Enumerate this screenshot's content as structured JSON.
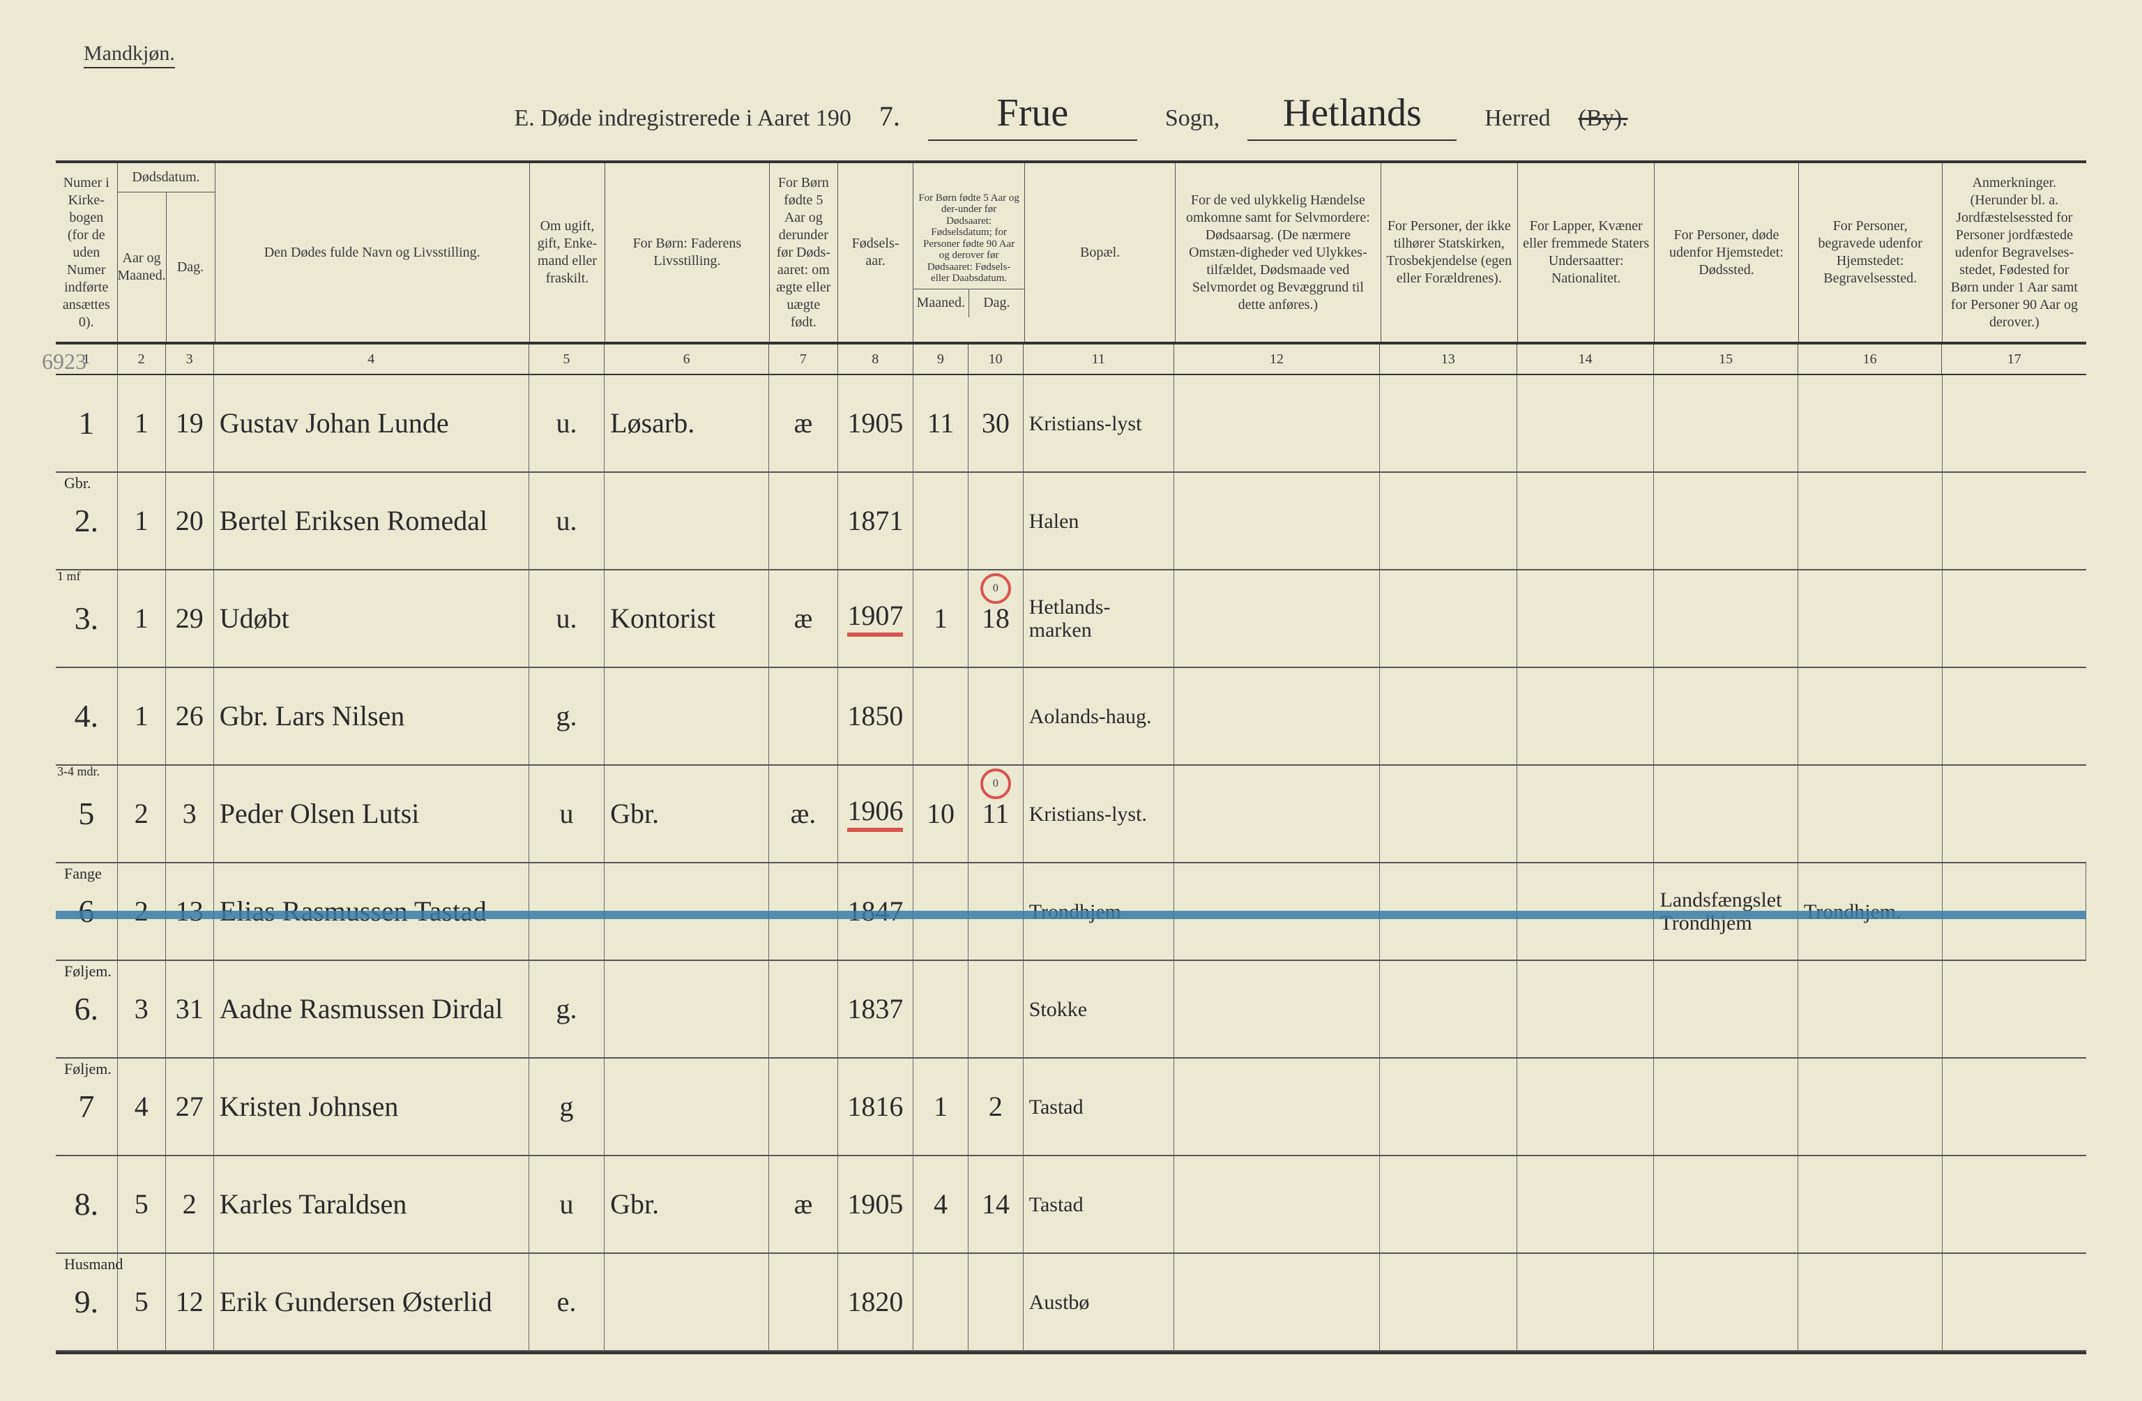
{
  "page": {
    "gender_label": "Mandkjøn.",
    "title_prefix": "E.   Døde indregistrerede i Aaret 190",
    "year_suffix": "7.",
    "sogn_value": "Frue",
    "sogn_label": "Sogn,",
    "herred_value": "Hetlands",
    "herred_label": "Herred",
    "by_struck": "(By)."
  },
  "headers": {
    "c1": "Numer i Kirke-bogen (for de uden Numer indførte ansættes 0).",
    "c2_3_top": "Dødsdatum.",
    "c2": "Aar og Maaned.",
    "c3": "Dag.",
    "c4": "Den Dødes fulde Navn og Livsstilling.",
    "c5": "Om ugift, gift, Enke-mand eller fraskilt.",
    "c6": "For Børn: Faderens Livsstilling.",
    "c7": "For Børn fødte 5 Aar og derunder før Døds-aaret: om ægte eller uægte født.",
    "c8": "Fødsels-aar.",
    "c9_10_top": "For Børn fødte 5 Aar og der-under før Dødsaaret: Fødselsdatum; for Personer fødte 90 Aar og derover før Dødsaaret: Fødsels- eller Daabsdatum.",
    "c9": "Maaned.",
    "c10": "Dag.",
    "c11": "Bopæl.",
    "c12": "For de ved ulykkelig Hændelse omkomne samt for Selvmordere: Dødsaarsag. (De nærmere Omstæn-digheder ved Ulykkes-tilfældet, Dødsmaade ved Selvmordet og Bevæggrund til dette anføres.)",
    "c13": "For Personer, der ikke tilhører Statskirken, Trosbekjendelse (egen eller Forældrenes).",
    "c14": "For Lapper, Kvæner eller fremmede Staters Undersaatter: Nationalitet.",
    "c15": "For Personer, døde udenfor Hjemstedet: Dødssted.",
    "c16": "For Personer, begravede udenfor Hjemstedet: Begravelsessted.",
    "c17": "Anmerkninger. (Herunder bl. a. Jordfæstelsessted for Personer jordfæstede udenfor Begravelses-stedet, Fødested for Børn under 1 Aar samt for Personer 90 Aar og derover.)"
  },
  "col_nums": {
    "c1": "1",
    "c2": "2",
    "c3": "3",
    "c4": "4",
    "c5": "5",
    "c6": "6",
    "c7": "7",
    "c8": "8",
    "c9": "9",
    "c10": "10",
    "c11": "11",
    "c12": "12",
    "c13": "13",
    "c14": "14",
    "c15": "15",
    "c16": "16",
    "c17": "17"
  },
  "margin_note": "6923",
  "rows": [
    {
      "num": "1",
      "maaned": "1",
      "dag": "19",
      "name": "Gustav Johan Lunde",
      "name_over": "",
      "civil": "u.",
      "fader": "Løsarb.",
      "legit": "æ",
      "faar": "1905",
      "fmnd": "11",
      "fdag": "30",
      "bopal": "Kristians-lyst",
      "c15": "",
      "c16": "",
      "red_year": false,
      "red_day": false
    },
    {
      "num": "2.",
      "maaned": "1",
      "dag": "20",
      "name": "Bertel Eriksen Romedal",
      "name_over": "Gbr.",
      "civil": "u.",
      "fader": "",
      "legit": "",
      "faar": "1871",
      "fmnd": "",
      "fdag": "",
      "bopal": "Halen",
      "c15": "",
      "c16": "",
      "red_year": false,
      "red_day": false
    },
    {
      "num": "3.",
      "maaned": "1",
      "dag": "29",
      "name": "Udøbt",
      "name_over": "",
      "civil": "u.",
      "fader": "Kontorist",
      "legit": "æ",
      "faar": "1907",
      "fmnd": "1",
      "fdag": "18",
      "fmnd_over": "1 mf",
      "fmnd_circle": "0",
      "bopal": "Hetlands-marken",
      "c15": "",
      "c16": "",
      "red_year": true,
      "red_day": false
    },
    {
      "num": "4.",
      "maaned": "1",
      "dag": "26",
      "name": "Gbr. Lars Nilsen",
      "name_over": "",
      "civil": "g.",
      "fader": "",
      "legit": "",
      "faar": "1850",
      "fmnd": "",
      "fdag": "",
      "bopal": "Aolands-haug.",
      "c15": "",
      "c16": "",
      "red_year": false,
      "red_day": false
    },
    {
      "num": "5",
      "maaned": "2",
      "dag": "3",
      "name": "Peder Olsen Lutsi",
      "name_over": "",
      "civil": "u",
      "fader": "Gbr.",
      "legit": "æ.",
      "faar": "1906",
      "fmnd": "10",
      "fdag": "11",
      "fmnd_over": "3-4 mdr.",
      "fmnd_circle": "0",
      "bopal": "Kristians-lyst.",
      "c15": "",
      "c16": "",
      "red_year": true,
      "red_day": false
    },
    {
      "num": "6",
      "maaned": "2",
      "dag": "13",
      "name": "Elias Rasmussen Tastad",
      "name_over": "Fange",
      "civil": "",
      "fader": "",
      "legit": "",
      "faar": "1847",
      "fmnd": "",
      "fdag": "",
      "bopal": "Trondhjem",
      "c15": "Landsfængslet Trondhjem",
      "c16": "Trondhjem.",
      "struck": true,
      "red_year": false,
      "red_day": false
    },
    {
      "num": "6.",
      "maaned": "3",
      "dag": "31",
      "name": "Aadne Rasmussen Dirdal",
      "name_over": "Føljem.",
      "civil": "g.",
      "fader": "",
      "legit": "",
      "faar": "1837",
      "fmnd": "",
      "fdag": "",
      "bopal": "Stokke",
      "c15": "",
      "c16": "",
      "red_year": false,
      "red_day": false
    },
    {
      "num": "7",
      "maaned": "4",
      "dag": "27",
      "name": "Kristen Johnsen",
      "name_over": "Føljem.",
      "civil": "g",
      "fader": "",
      "legit": "",
      "faar": "1816",
      "fmnd": "1",
      "fdag": "2",
      "bopal": "Tastad",
      "c15": "",
      "c16": "",
      "red_year": false,
      "red_day": false
    },
    {
      "num": "8.",
      "maaned": "5",
      "dag": "2",
      "name": "Karles Taraldsen",
      "name_over": "",
      "civil": "u",
      "fader": "Gbr.",
      "legit": "æ",
      "faar": "1905",
      "fmnd": "4",
      "fdag": "14",
      "bopal": "Tastad",
      "c15": "",
      "c16": "",
      "red_year": false,
      "red_day": false
    },
    {
      "num": "9.",
      "maaned": "5",
      "dag": "12",
      "name": "Erik Gundersen Østerlid",
      "name_over": "Husmand",
      "civil": "e.",
      "fader": "",
      "legit": "",
      "faar": "1820",
      "fmnd": "",
      "fdag": "",
      "bopal": "Austbø",
      "c15": "",
      "c16": "",
      "red_year": false,
      "red_day": false
    }
  ]
}
